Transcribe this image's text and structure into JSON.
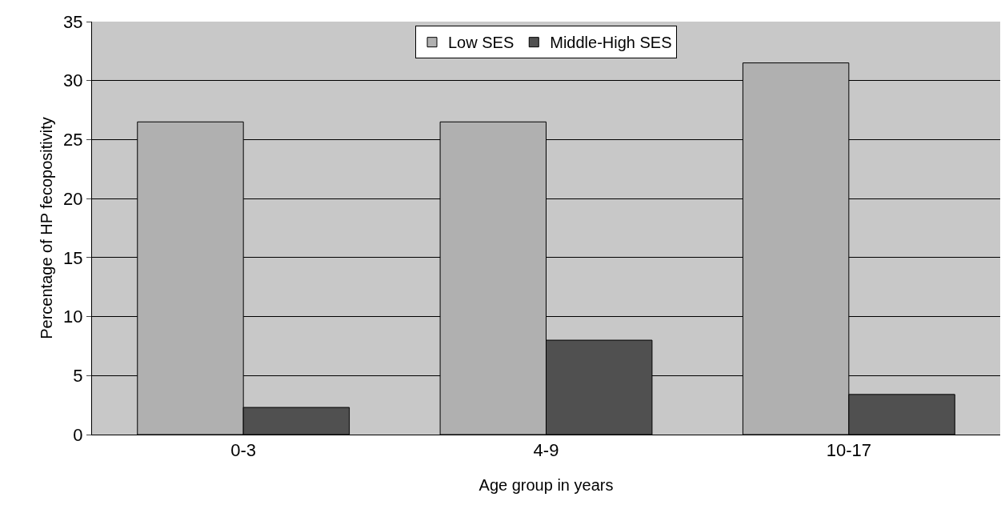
{
  "chart_data": {
    "type": "bar",
    "xlabel": "Age group in years",
    "ylabel": "Percentage of HP fecopositivity",
    "categories": [
      "0-3",
      "4-9",
      "10-17"
    ],
    "series": [
      {
        "name": "Low SES",
        "color": "#b0b0b0",
        "values": [
          26.5,
          26.5,
          31.5
        ]
      },
      {
        "name": "Middle-High SES",
        "color": "#505050",
        "values": [
          2.3,
          8.0,
          3.4
        ]
      }
    ],
    "ylim": [
      0,
      35
    ],
    "yticks": [
      0,
      5,
      10,
      15,
      20,
      25,
      30,
      35
    ],
    "grid": "y",
    "legend": "top"
  }
}
